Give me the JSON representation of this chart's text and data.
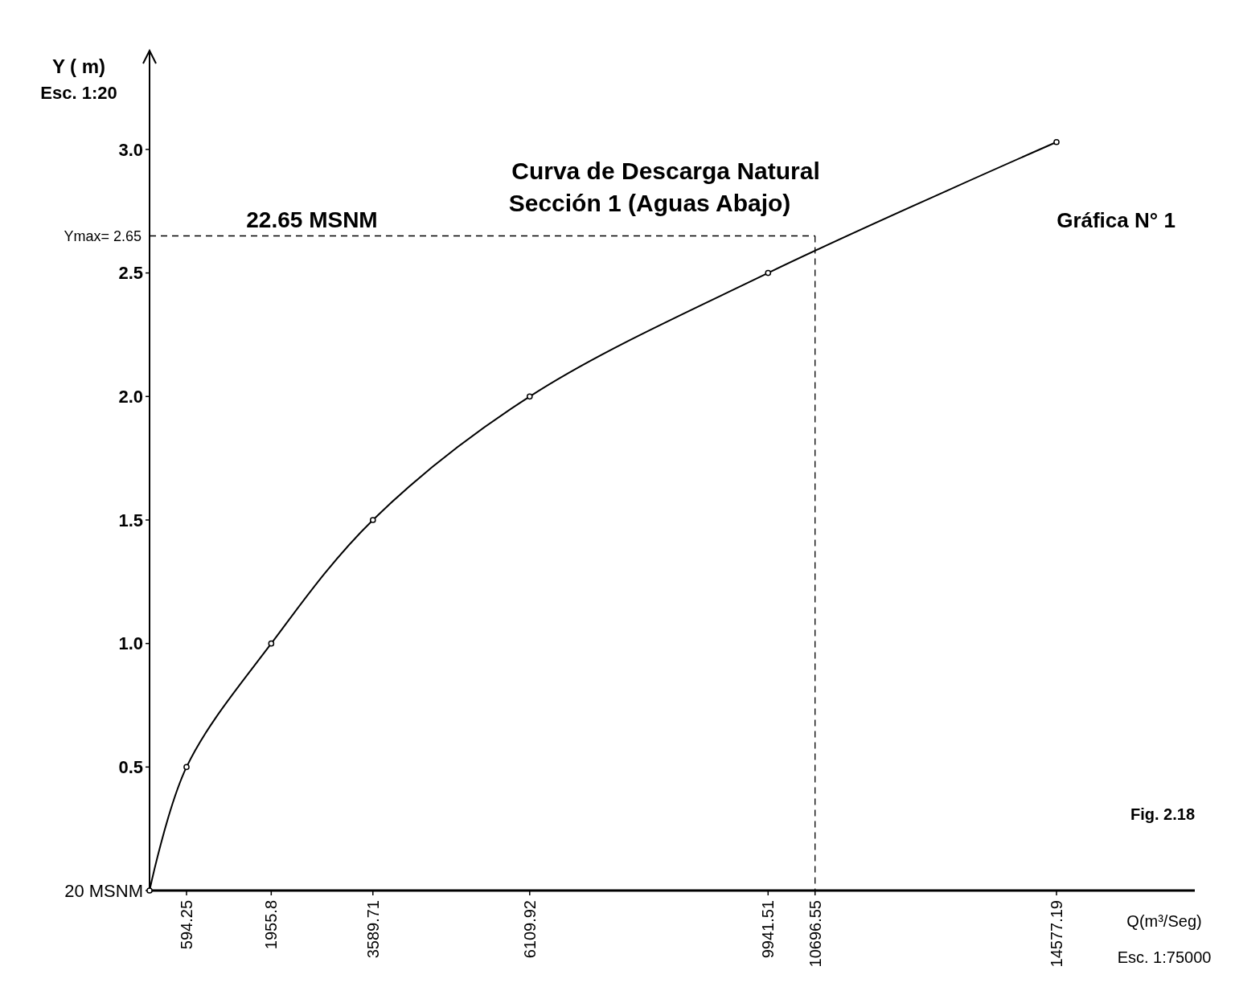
{
  "chart_data": {
    "type": "line",
    "title": "Curva de Descarga Natural",
    "subtitle": "Sección 1 (Aguas Abajo)",
    "xlabel": "Q(m³/Seg)",
    "ylabel": "Y (  m)",
    "annotations": [
      "20 MSNM",
      "Esc. 1:20",
      "22.65 MSNM",
      "Gráfica N° 1",
      "Fig. 2.18",
      "Esc. 1:75000"
    ],
    "xlim": [
      0,
      16800
    ],
    "ylim": [
      0,
      3.4
    ],
    "xticks": [
      594.25,
      1955.8,
      3589.71,
      6109.92,
      9941.51,
      10696.55,
      14577.19
    ],
    "yticks": [
      {
        "value": 0,
        "label": null
      },
      0.5,
      {
        "value": 1,
        "label": "1.0"
      },
      1.5,
      {
        "value": 2,
        "label": "2.0"
      },
      2.5,
      {
        "value": 3,
        "label": "3.0"
      }
    ],
    "series": [
      {
        "color": "#000000",
        "x": [
          0,
          594.25,
          1955.8,
          3589.71,
          6109.92,
          9941.51,
          14577.19
        ],
        "values": [
          0,
          0.5,
          1,
          1.5,
          2,
          2.5,
          3.03
        ]
      }
    ],
    "marker": "circle",
    "grid": false,
    "ref_lines": [
      {
        "axis": "y",
        "value": 2.65,
        "label": "Ymax= 2.65",
        "line_style": "dashed",
        "color": "#000000"
      },
      {
        "axis": "x",
        "value": 10696.55,
        "label": null,
        "line_style": "dashed",
        "color": "#000000"
      }
    ]
  }
}
